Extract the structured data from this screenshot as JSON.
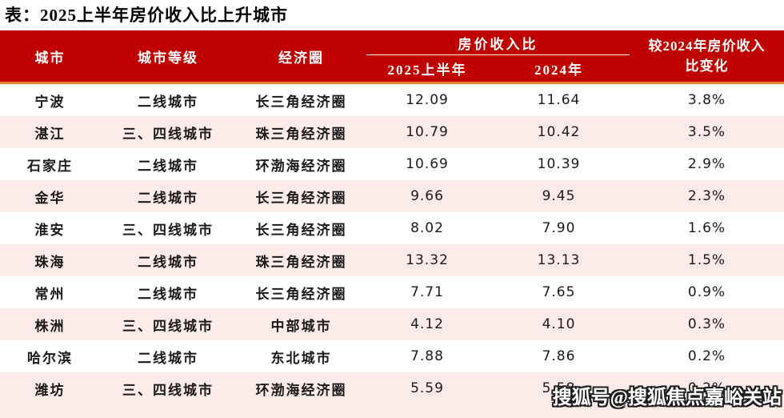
{
  "page_title": "表：2025上半年房价收入比上升城市",
  "chart_data": {
    "type": "table",
    "title": "表：2025上半年房价收入比上升城市",
    "header": {
      "city": "城市",
      "tier": "城市等级",
      "circle": "经济圈",
      "group": "房价收入比",
      "sub_2025": "2025上半年",
      "sub_2024": "2024年",
      "change_line1": "较2024年房价收入",
      "change_line2": "比变化"
    },
    "rows": [
      {
        "city": "宁波",
        "tier": "二线城市",
        "circle": "长三角经济圈",
        "ratio_2025h1": "12.09",
        "ratio_2024": "11.64",
        "change": "3.8%"
      },
      {
        "city": "湛江",
        "tier": "三、四线城市",
        "circle": "珠三角经济圈",
        "ratio_2025h1": "10.79",
        "ratio_2024": "10.42",
        "change": "3.5%"
      },
      {
        "city": "石家庄",
        "tier": "二线城市",
        "circle": "环渤海经济圈",
        "ratio_2025h1": "10.69",
        "ratio_2024": "10.39",
        "change": "2.9%"
      },
      {
        "city": "金华",
        "tier": "二线城市",
        "circle": "长三角经济圈",
        "ratio_2025h1": "9.66",
        "ratio_2024": "9.45",
        "change": "2.3%"
      },
      {
        "city": "淮安",
        "tier": "三、四线城市",
        "circle": "长三角经济圈",
        "ratio_2025h1": "8.02",
        "ratio_2024": "7.90",
        "change": "1.6%"
      },
      {
        "city": "珠海",
        "tier": "二线城市",
        "circle": "珠三角经济圈",
        "ratio_2025h1": "13.32",
        "ratio_2024": "13.13",
        "change": "1.5%"
      },
      {
        "city": "常州",
        "tier": "二线城市",
        "circle": "长三角经济圈",
        "ratio_2025h1": "7.71",
        "ratio_2024": "7.65",
        "change": "0.9%"
      },
      {
        "city": "株洲",
        "tier": "三、四线城市",
        "circle": "中部城市",
        "ratio_2025h1": "4.12",
        "ratio_2024": "4.10",
        "change": "0.3%"
      },
      {
        "city": "哈尔滨",
        "tier": "二线城市",
        "circle": "东北城市",
        "ratio_2025h1": "7.88",
        "ratio_2024": "7.86",
        "change": "0.2%"
      },
      {
        "city": "潍坊",
        "tier": "三、四线城市",
        "circle": "环渤海经济圈",
        "ratio_2025h1": "5.59",
        "ratio_2024": "5.58",
        "change": "0.2%"
      }
    ]
  },
  "watermark": {
    "text": "搜狐号@搜狐焦点嘉峪关站"
  },
  "colors": {
    "header_bg": "#c00101",
    "header_text": "#ffffff",
    "accent_divider": "#e8812c",
    "row_stripe": "#fcebe9",
    "body_text": "#1a1a1a"
  }
}
